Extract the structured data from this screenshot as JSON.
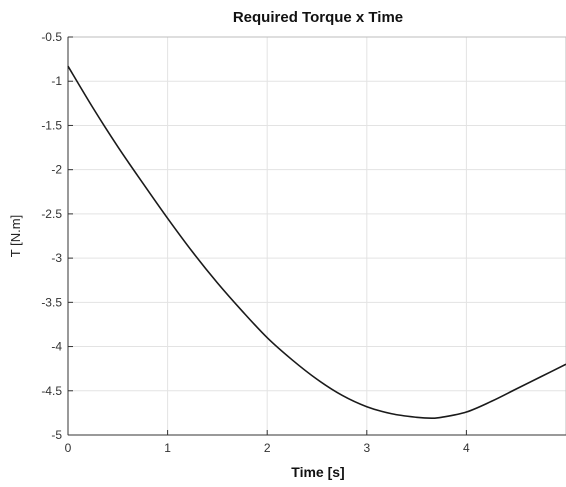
{
  "chart_data": {
    "type": "line",
    "title": "Required Torque x Time",
    "xlabel": "Time [s]",
    "ylabel": "T [N.m]",
    "xlim": [
      0,
      5
    ],
    "ylim": [
      -5,
      -0.5
    ],
    "xticks": [
      0,
      1,
      2,
      3,
      4
    ],
    "xtick_labels": [
      "0",
      "1",
      "2",
      "3",
      "4"
    ],
    "yticks": [
      -0.5,
      -1,
      -1.5,
      -2,
      -2.5,
      -3,
      -3.5,
      -4,
      -4.5,
      -5
    ],
    "ytick_labels": [
      "-0.5",
      "-1",
      "-1.5",
      "-2",
      "-2.5",
      "-3",
      "-3.5",
      "-4",
      "-4.5",
      "-5"
    ],
    "grid": true,
    "series": [
      {
        "color": "#1a1a1a",
        "x": [
          0,
          0.25,
          0.5,
          0.75,
          1,
          1.25,
          1.5,
          1.75,
          2,
          2.25,
          2.5,
          2.75,
          3,
          3.25,
          3.5,
          3.65,
          3.75,
          4,
          4.25,
          4.5,
          4.75,
          5
        ],
        "y": [
          -0.83,
          -1.3,
          -1.74,
          -2.15,
          -2.55,
          -2.93,
          -3.28,
          -3.6,
          -3.9,
          -4.15,
          -4.37,
          -4.55,
          -4.68,
          -4.76,
          -4.8,
          -4.81,
          -4.8,
          -4.74,
          -4.62,
          -4.48,
          -4.34,
          -4.2
        ]
      }
    ]
  }
}
